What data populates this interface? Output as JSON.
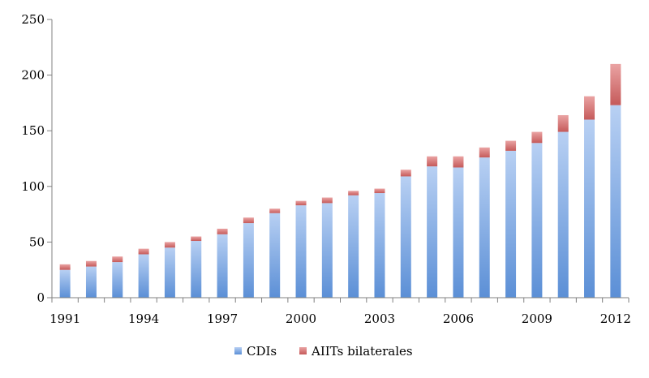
{
  "chart_data": {
    "type": "bar",
    "stacked": true,
    "categories": [
      "1991",
      "1992",
      "1993",
      "1994",
      "1995",
      "1996",
      "1997",
      "1998",
      "1999",
      "2000",
      "2001",
      "2002",
      "2003",
      "2004",
      "2005",
      "2006",
      "2007",
      "2008",
      "2009",
      "2010",
      "2011",
      "2012"
    ],
    "x_tick_labels": [
      "1991",
      "1994",
      "1997",
      "2000",
      "2003",
      "2006",
      "2009",
      "2012"
    ],
    "y_tick_labels": [
      "0",
      "50",
      "100",
      "150",
      "200",
      "250"
    ],
    "ylim": [
      0,
      250
    ],
    "grid": false,
    "legend_position": "bottom",
    "series": [
      {
        "name": "CDIs",
        "color": "#4f81bd",
        "values": [
          25,
          28,
          32,
          39,
          45,
          51,
          57,
          67,
          76,
          83,
          85,
          92,
          94,
          109,
          118,
          117,
          126,
          132,
          139,
          149,
          160,
          173
        ]
      },
      {
        "name": "AIITs bilaterales",
        "color": "#c0504d",
        "values": [
          5,
          5,
          5,
          5,
          5,
          4,
          5,
          5,
          4,
          4,
          5,
          4,
          4,
          6,
          9,
          10,
          9,
          9,
          10,
          15,
          21,
          37
        ]
      }
    ]
  }
}
